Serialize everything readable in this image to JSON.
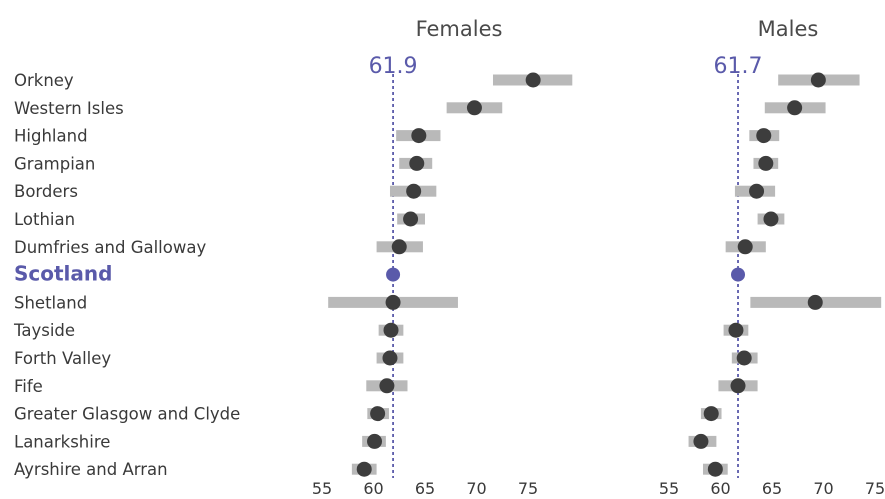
{
  "chart_data": [
    {
      "type": "dot-range",
      "title": "Females",
      "reference": {
        "label": "61.9",
        "value": 61.9
      },
      "xlim": [
        55,
        78
      ],
      "xticks": [
        "55",
        "60",
        "65",
        "70",
        "75"
      ],
      "categories": [
        "Orkney",
        "Western Isles",
        "Highland",
        "Grampian",
        "Borders",
        "Lothian",
        "Dumfries and Galloway",
        "Scotland",
        "Shetland",
        "Tayside",
        "Forth Valley",
        "Fife",
        "Greater Glasgow and Clyde",
        "Lanarkshire",
        "Ayrshire and Arran"
      ],
      "highlight": "Scotland",
      "values": [
        75.5,
        69.8,
        64.4,
        64.2,
        63.9,
        63.6,
        62.5,
        61.9,
        61.9,
        61.7,
        61.6,
        61.3,
        60.4,
        60.1,
        59.1
      ],
      "lower": [
        71.6,
        67.1,
        62.2,
        62.5,
        61.6,
        62.3,
        60.3,
        61.9,
        55.6,
        60.5,
        60.3,
        59.3,
        59.4,
        58.9,
        57.9
      ],
      "upper": [
        79.3,
        72.5,
        66.5,
        65.7,
        66.1,
        65.0,
        64.8,
        61.9,
        68.2,
        62.9,
        62.9,
        63.3,
        61.5,
        61.2,
        60.3
      ]
    },
    {
      "type": "dot-range",
      "title": "Males",
      "reference": {
        "label": "61.7",
        "value": 61.7
      },
      "xlim": [
        55,
        78
      ],
      "xticks": [
        "55",
        "60",
        "65",
        "70",
        "75"
      ],
      "categories": [
        "Orkney",
        "Western Isles",
        "Highland",
        "Grampian",
        "Borders",
        "Lothian",
        "Dumfries and Galloway",
        "Scotland",
        "Shetland",
        "Tayside",
        "Forth Valley",
        "Fife",
        "Greater Glasgow and Clyde",
        "Lanarkshire",
        "Ayrshire and Arran"
      ],
      "highlight": "Scotland",
      "values": [
        69.5,
        67.2,
        64.2,
        64.4,
        63.5,
        64.9,
        62.4,
        61.7,
        69.2,
        61.5,
        62.3,
        61.7,
        59.1,
        58.1,
        59.5
      ],
      "lower": [
        65.6,
        64.3,
        62.8,
        63.2,
        61.4,
        63.6,
        60.5,
        61.7,
        62.9,
        60.3,
        61.1,
        59.8,
        58.1,
        56.9,
        58.3
      ],
      "upper": [
        73.5,
        70.2,
        65.7,
        65.6,
        65.3,
        66.2,
        64.4,
        61.7,
        75.6,
        62.7,
        63.6,
        63.6,
        60.1,
        59.6,
        60.7
      ]
    }
  ],
  "colors": {
    "dot": "#3d3d3d",
    "range": "#b9b9b9",
    "reference": "#5a5aaa",
    "text": "#3a3a3a"
  }
}
